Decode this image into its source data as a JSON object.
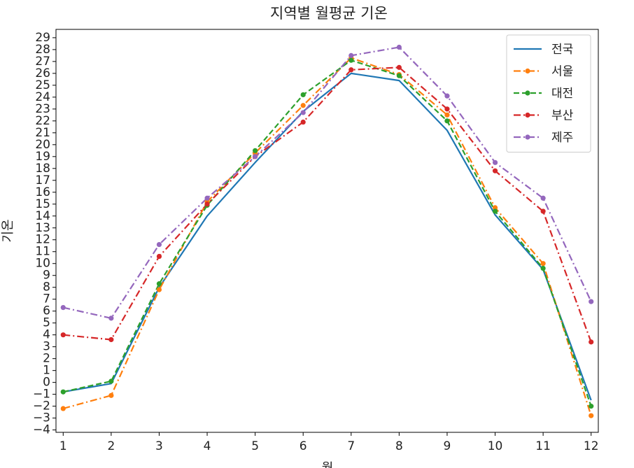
{
  "chart_data": {
    "type": "line",
    "title": "지역별 월평균 기온",
    "xlabel": "월",
    "ylabel": "기온",
    "x": [
      1,
      2,
      3,
      4,
      5,
      6,
      7,
      8,
      9,
      10,
      11,
      12
    ],
    "xlim": [
      0.85,
      12.15
    ],
    "ylim": [
      -4.2,
      29.7
    ],
    "yticks": [
      -4,
      -3,
      -2,
      -1,
      0,
      1,
      2,
      3,
      4,
      5,
      6,
      7,
      8,
      9,
      10,
      11,
      12,
      13,
      14,
      15,
      16,
      17,
      18,
      19,
      20,
      21,
      22,
      23,
      24,
      25,
      26,
      27,
      28,
      29
    ],
    "ytick_labels": [
      "−4",
      "−3",
      "−2",
      "−1",
      "0",
      "1",
      "2",
      "3",
      "4",
      "5",
      "6",
      "7",
      "8",
      "9",
      "10",
      "11",
      "12",
      "13",
      "14",
      "15",
      "16",
      "17",
      "18",
      "19",
      "20",
      "21",
      "22",
      "23",
      "24",
      "25",
      "26",
      "27",
      "28",
      "29"
    ],
    "grid": false,
    "legend_position": "top-right",
    "series": [
      {
        "name": "전국",
        "color": "#1f77b4",
        "dash": "solid",
        "marker": false,
        "values": [
          -0.8,
          -0.1,
          8.0,
          14.0,
          18.5,
          22.8,
          26.0,
          25.4,
          21.2,
          14.1,
          9.5,
          -1.5
        ]
      },
      {
        "name": "서울",
        "color": "#ff7f0e",
        "dash": "dashdot",
        "marker": true,
        "values": [
          -2.2,
          -1.1,
          7.8,
          15.2,
          19.3,
          23.3,
          27.3,
          25.9,
          22.5,
          14.7,
          10.0,
          -2.8
        ]
      },
      {
        "name": "대전",
        "color": "#2ca02c",
        "dash": "dashed",
        "marker": true,
        "values": [
          -0.8,
          0.1,
          8.3,
          14.9,
          19.5,
          24.2,
          27.1,
          25.8,
          22.0,
          14.4,
          9.6,
          -2.0
        ]
      },
      {
        "name": "부산",
        "color": "#d62728",
        "dash": "dashdot",
        "marker": true,
        "values": [
          4.0,
          3.6,
          10.6,
          15.0,
          19.0,
          21.9,
          26.3,
          26.5,
          23.0,
          17.8,
          14.4,
          3.4
        ]
      },
      {
        "name": "제주",
        "color": "#9467bd",
        "dash": "dashdot",
        "marker": true,
        "values": [
          6.3,
          5.4,
          11.6,
          15.5,
          19.0,
          22.7,
          27.5,
          28.2,
          24.1,
          18.5,
          15.5,
          6.8
        ]
      }
    ]
  }
}
